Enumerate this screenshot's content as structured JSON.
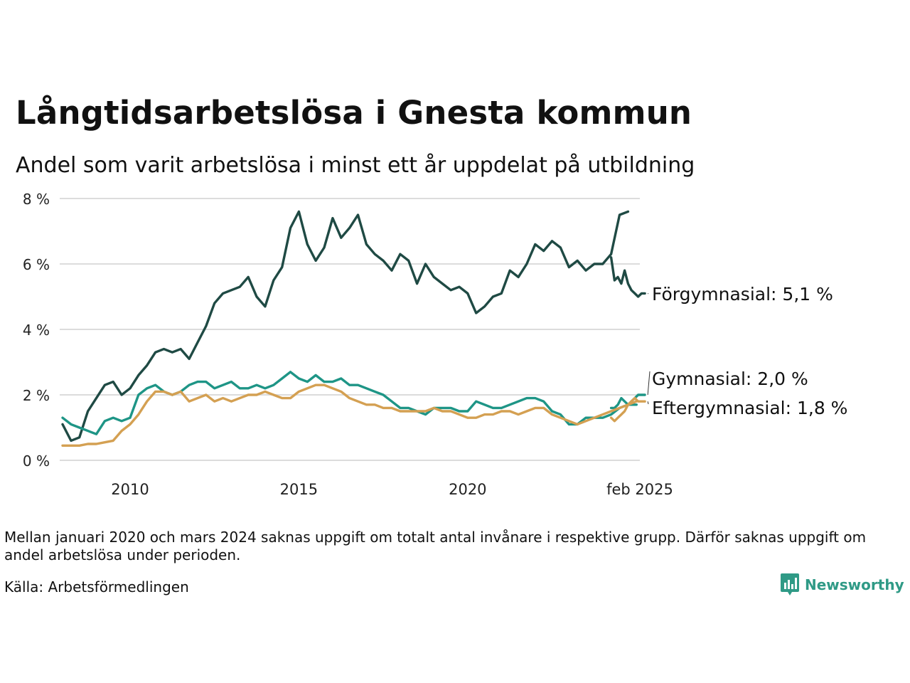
{
  "title": "Långtidsarbetslösa i Gnesta kommun",
  "subtitle": "Andel som varit arbetslösa i minst ett år uppdelat på utbildning",
  "note": "Mellan januari 2020 och mars 2024 saknas uppgift om totalt antal invånare i respektive grupp. Därför saknas uppgift om andel arbetslösa under perioden.",
  "source": "Källa: Arbetsförmedlingen",
  "brand": {
    "name": "Newsworthy",
    "icon": "bar-chart-logo-icon",
    "color": "#2f9a86"
  },
  "chart_data": {
    "type": "line",
    "ylim": [
      0,
      8
    ],
    "xlim": [
      2008.0,
      2025.1
    ],
    "grid": true,
    "y_ticks": [
      {
        "value": 0,
        "label": "0 %"
      },
      {
        "value": 2,
        "label": "2 %"
      },
      {
        "value": 4,
        "label": "4 %"
      },
      {
        "value": 6,
        "label": "6 %"
      },
      {
        "value": 8,
        "label": "8 %"
      }
    ],
    "x_ticks": [
      {
        "value": 2010,
        "label": "2010"
      },
      {
        "value": 2015,
        "label": "2015"
      },
      {
        "value": 2020,
        "label": "2020"
      },
      {
        "value": 2025.1,
        "label": "feb 2025"
      }
    ],
    "series": [
      {
        "name": "Förgymnasial",
        "end_label": "Förgymnasial: 5,1 %",
        "color": "#1f4a44",
        "segments": [
          {
            "start": 2008.0,
            "step": 0.25,
            "values": [
              1.1,
              0.6,
              0.7,
              1.5,
              1.9,
              2.3,
              2.4,
              2.0,
              2.2,
              2.6,
              2.9,
              3.3,
              3.4,
              3.3,
              3.4,
              3.1,
              3.6,
              4.1,
              4.8,
              5.1,
              5.2,
              5.3,
              5.6,
              5.0,
              4.7,
              5.5,
              5.9,
              7.1,
              7.6,
              6.6,
              6.1,
              6.5,
              7.4,
              6.8,
              7.1,
              7.5,
              6.6,
              6.3,
              6.1,
              5.8,
              6.3,
              6.1,
              5.4,
              6.0,
              5.6,
              5.4,
              5.2,
              5.3,
              5.1,
              4.5,
              4.7,
              5.0,
              5.1,
              5.8,
              5.6,
              6.0,
              6.6,
              6.4,
              6.7,
              6.5,
              5.9,
              6.1,
              5.8,
              6.0,
              6.0,
              6.3,
              7.5,
              7.6
            ]
          },
          {
            "start": 2024.25,
            "step": 0.1,
            "values": [
              6.2,
              5.5,
              5.6,
              5.4,
              5.8,
              5.4,
              5.2,
              5.1,
              5.0,
              5.1,
              5.1
            ]
          }
        ]
      },
      {
        "name": "Gymnasial",
        "end_label": "Gymnasial: 2,0 %",
        "color": "#1e9586",
        "segments": [
          {
            "start": 2008.0,
            "step": 0.25,
            "values": [
              1.3,
              1.1,
              1.0,
              0.9,
              0.8,
              1.2,
              1.3,
              1.2,
              1.3,
              2.0,
              2.2,
              2.3,
              2.1,
              2.0,
              2.1,
              2.3,
              2.4,
              2.4,
              2.2,
              2.3,
              2.4,
              2.2,
              2.2,
              2.3,
              2.2,
              2.3,
              2.5,
              2.7,
              2.5,
              2.4,
              2.6,
              2.4,
              2.4,
              2.5,
              2.3,
              2.3,
              2.2,
              2.1,
              2.0,
              1.8,
              1.6,
              1.6,
              1.5,
              1.4,
              1.6,
              1.6,
              1.6,
              1.5,
              1.5,
              1.8,
              1.7,
              1.6,
              1.6,
              1.7,
              1.8,
              1.9,
              1.9,
              1.8,
              1.5,
              1.4,
              1.1,
              1.1,
              1.3,
              1.3,
              1.3,
              1.4,
              1.6,
              1.7,
              1.7
            ]
          },
          {
            "start": 2024.25,
            "step": 0.1,
            "values": [
              1.6,
              1.6,
              1.7,
              1.9,
              1.8,
              1.7,
              1.8,
              1.9,
              2.0,
              2.0,
              2.0
            ]
          }
        ]
      },
      {
        "name": "Eftergymnasial",
        "end_label": "Eftergymnasial: 1,8 %",
        "color": "#d4a052",
        "segments": [
          {
            "start": 2008.0,
            "step": 0.25,
            "values": [
              0.45,
              0.45,
              0.45,
              0.5,
              0.5,
              0.55,
              0.6,
              0.9,
              1.1,
              1.4,
              1.8,
              2.1,
              2.1,
              2.0,
              2.1,
              1.8,
              1.9,
              2.0,
              1.8,
              1.9,
              1.8,
              1.9,
              2.0,
              2.0,
              2.1,
              2.0,
              1.9,
              1.9,
              2.1,
              2.2,
              2.3,
              2.3,
              2.2,
              2.1,
              1.9,
              1.8,
              1.7,
              1.7,
              1.6,
              1.6,
              1.5,
              1.5,
              1.5,
              1.5,
              1.6,
              1.5,
              1.5,
              1.4,
              1.3,
              1.3,
              1.4,
              1.4,
              1.5,
              1.5,
              1.4,
              1.5,
              1.6,
              1.6,
              1.4,
              1.3,
              1.2,
              1.1,
              1.2,
              1.3,
              1.4,
              1.5,
              1.6,
              1.7,
              1.8
            ]
          },
          {
            "start": 2024.25,
            "step": 0.1,
            "values": [
              1.3,
              1.2,
              1.3,
              1.4,
              1.5,
              1.7,
              1.8,
              1.9,
              1.8,
              1.8,
              1.8
            ]
          }
        ]
      }
    ]
  }
}
